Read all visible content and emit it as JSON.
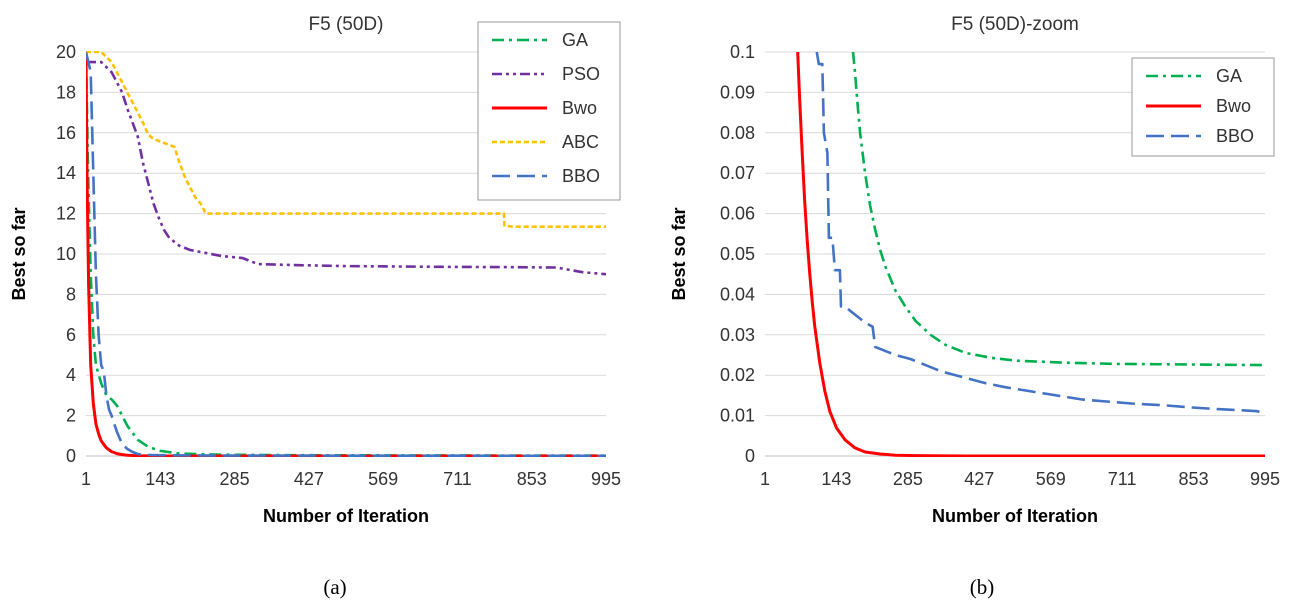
{
  "chart_data": [
    {
      "type": "line",
      "title": "F5 (50D)",
      "xlabel": "Number of Iteration",
      "ylabel": "Best so far",
      "xlim": [
        1,
        995
      ],
      "ylim": [
        0,
        20
      ],
      "x_ticks": [
        "1",
        "143",
        "285",
        "427",
        "569",
        "711",
        "853",
        "995"
      ],
      "y_ticks": [
        "0",
        "2",
        "4",
        "6",
        "8",
        "10",
        "12",
        "14",
        "16",
        "18",
        "20"
      ],
      "grid": "horizontal",
      "legend_position": "top-right",
      "caption": "(a)",
      "series": [
        {
          "name": "GA",
          "color": "#00b050",
          "dash": "dash-dot",
          "x": [
            1,
            5,
            10,
            15,
            20,
            30,
            40,
            50,
            60,
            70,
            80,
            100,
            120,
            143,
            180,
            250,
            400,
            600,
            800,
            995
          ],
          "y": [
            20,
            14,
            9,
            6,
            4.5,
            3.6,
            3.0,
            2.8,
            2.5,
            2.0,
            1.5,
            0.8,
            0.45,
            0.25,
            0.12,
            0.07,
            0.04,
            0.03,
            0.025,
            0.022
          ]
        },
        {
          "name": "PSO",
          "color": "#7030a0",
          "dash": "dash-dot-dot",
          "x": [
            1,
            30,
            50,
            70,
            80,
            90,
            100,
            110,
            120,
            130,
            140,
            150,
            160,
            170,
            180,
            190,
            200,
            220,
            240,
            260,
            300,
            320,
            330,
            400,
            500,
            600,
            700,
            800,
            900,
            950,
            995
          ],
          "y": [
            19.5,
            19.5,
            19.0,
            18.0,
            17.2,
            16.5,
            15.8,
            14.5,
            13.5,
            12.5,
            11.8,
            11.2,
            10.8,
            10.6,
            10.4,
            10.3,
            10.2,
            10.1,
            10.0,
            9.9,
            9.8,
            9.6,
            9.5,
            9.45,
            9.4,
            9.38,
            9.36,
            9.35,
            9.33,
            9.1,
            9.0
          ]
        },
        {
          "name": "Bwo",
          "color": "#ff0000",
          "dash": "solid",
          "x": [
            1,
            3,
            6,
            10,
            15,
            20,
            25,
            30,
            40,
            50,
            60,
            70,
            80,
            100,
            143,
            285,
            427,
            569,
            711,
            853,
            995
          ],
          "y": [
            20,
            14,
            8.5,
            4.5,
            2.6,
            1.6,
            1.1,
            0.75,
            0.4,
            0.22,
            0.12,
            0.07,
            0.04,
            0.015,
            0.002,
            0,
            0,
            0,
            0,
            0,
            0
          ]
        },
        {
          "name": "ABC",
          "color": "#ffc000",
          "dash": "dashed",
          "x": [
            1,
            30,
            50,
            60,
            70,
            80,
            90,
            100,
            110,
            120,
            130,
            140,
            150,
            160,
            170,
            180,
            190,
            200,
            210,
            220,
            230,
            240,
            800,
            801,
            820,
            900,
            995
          ],
          "y": [
            20,
            20,
            19.5,
            19.0,
            18.5,
            18.0,
            17.5,
            17.0,
            16.5,
            15.9,
            15.7,
            15.6,
            15.5,
            15.4,
            15.3,
            14.5,
            13.8,
            13.3,
            12.8,
            12.5,
            12.0,
            12.0,
            12.0,
            11.4,
            11.35,
            11.35,
            11.35
          ]
        },
        {
          "name": "BBO",
          "color": "#4472c4",
          "dash": "long-dash",
          "x": [
            1,
            10,
            15,
            20,
            25,
            30,
            35,
            40,
            45,
            50,
            55,
            60,
            65,
            70,
            80,
            90,
            100,
            110,
            120,
            143,
            200,
            285,
            427,
            569,
            711,
            853,
            995
          ],
          "y": [
            20,
            19,
            14,
            9,
            6,
            4.5,
            4.2,
            3.0,
            2.3,
            2.0,
            1.6,
            1.2,
            0.9,
            0.6,
            0.35,
            0.2,
            0.1,
            0.06,
            0.05,
            0.04,
            0.03,
            0.02,
            0.018,
            0.015,
            0.013,
            0.012,
            0.011
          ]
        }
      ]
    },
    {
      "type": "line",
      "title": "F5 (50D)-zoom",
      "xlabel": "Number of Iteration",
      "ylabel": "Best so far",
      "xlim": [
        1,
        995
      ],
      "ylim": [
        0,
        0.1
      ],
      "x_ticks": [
        "1",
        "143",
        "285",
        "427",
        "569",
        "711",
        "853",
        "995"
      ],
      "y_ticks": [
        "0",
        "0.01",
        "0.02",
        "0.03",
        "0.04",
        "0.05",
        "0.06",
        "0.07",
        "0.08",
        "0.09",
        "0.1"
      ],
      "grid": "horizontal",
      "legend_position": "top-right",
      "caption": "(b)",
      "series": [
        {
          "name": "GA",
          "color": "#00b050",
          "dash": "dash-dot",
          "x": [
            176,
            180,
            185,
            190,
            200,
            210,
            220,
            230,
            240,
            250,
            260,
            280,
            300,
            330,
            360,
            400,
            450,
            500,
            600,
            700,
            800,
            900,
            995
          ],
          "y": [
            0.1,
            0.095,
            0.087,
            0.08,
            0.07,
            0.062,
            0.056,
            0.051,
            0.047,
            0.044,
            0.041,
            0.037,
            0.0335,
            0.03,
            0.0275,
            0.0255,
            0.0243,
            0.0236,
            0.0231,
            0.0228,
            0.0227,
            0.0226,
            0.0225
          ]
        },
        {
          "name": "Bwo",
          "color": "#ff0000",
          "dash": "solid",
          "x": [
            66,
            70,
            75,
            80,
            85,
            90,
            95,
            100,
            110,
            120,
            130,
            143,
            160,
            180,
            200,
            230,
            260,
            300,
            400,
            500,
            700,
            995
          ],
          "y": [
            0.1,
            0.088,
            0.075,
            0.063,
            0.053,
            0.045,
            0.038,
            0.032,
            0.023,
            0.016,
            0.011,
            0.007,
            0.004,
            0.002,
            0.001,
            0.0005,
            0.0002,
            0.0001,
            0,
            0,
            0,
            0
          ]
        },
        {
          "name": "BBO",
          "color": "#4472c4",
          "dash": "long-dash",
          "x": [
            104,
            108,
            115,
            118,
            125,
            128,
            135,
            140,
            150,
            152,
            160,
            170,
            180,
            190,
            200,
            215,
            220,
            230,
            260,
            290,
            320,
            350,
            380,
            410,
            440,
            480,
            530,
            580,
            630,
            680,
            730,
            800,
            850,
            900,
            950,
            980,
            995
          ],
          "y": [
            0.1,
            0.097,
            0.097,
            0.08,
            0.075,
            0.054,
            0.054,
            0.046,
            0.046,
            0.037,
            0.037,
            0.036,
            0.035,
            0.034,
            0.033,
            0.032,
            0.027,
            0.0265,
            0.025,
            0.024,
            0.0225,
            0.021,
            0.02,
            0.019,
            0.018,
            0.017,
            0.016,
            0.015,
            0.014,
            0.0135,
            0.013,
            0.0125,
            0.012,
            0.0116,
            0.0113,
            0.0111,
            0.0105
          ]
        }
      ]
    }
  ]
}
